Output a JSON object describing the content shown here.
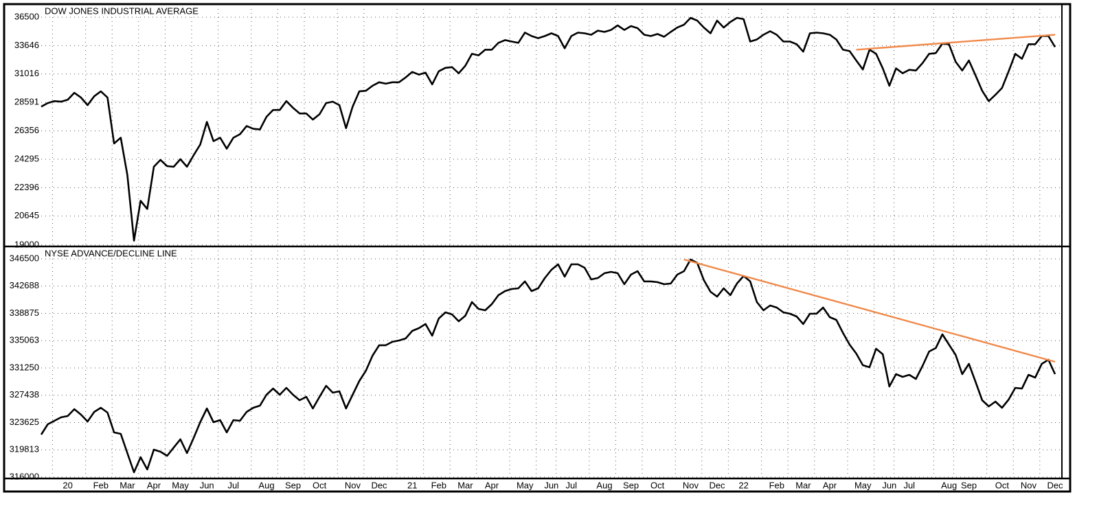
{
  "chart_data": [
    {
      "type": "line",
      "title": "DOW JONES INDUSTRIAL AVERAGE",
      "log_scale": true,
      "color": "#000000",
      "grid": true,
      "ylim": [
        19000,
        36500
      ],
      "yticks": [
        19000,
        20645,
        22396,
        24295,
        26356,
        28591,
        31016,
        33646,
        36500
      ],
      "values": [
        28250,
        28540,
        28700,
        28650,
        28810,
        29390,
        28990,
        28370,
        29100,
        29510,
        28990,
        25420,
        25840,
        23230,
        19240,
        21570,
        21070,
        23780,
        24250,
        23820,
        23780,
        24300,
        23780,
        24580,
        25340,
        27040,
        25590,
        25840,
        25040,
        25840,
        26100,
        26720,
        26510,
        26460,
        27440,
        27980,
        27980,
        28700,
        28150,
        27700,
        27700,
        27220,
        27640,
        28540,
        28650,
        28370,
        26560,
        28250,
        29510,
        29560,
        29990,
        30290,
        30170,
        30290,
        30290,
        30710,
        31200,
        30960,
        31140,
        30110,
        31260,
        31570,
        31630,
        31080,
        31750,
        32860,
        32720,
        33250,
        33250,
        33910,
        34180,
        34040,
        33910,
        34920,
        34580,
        34370,
        34580,
        34850,
        34580,
        33380,
        34580,
        34920,
        34850,
        34710,
        35120,
        34990,
        35190,
        35650,
        35190,
        35580,
        35370,
        34710,
        34580,
        34780,
        34510,
        34990,
        35430,
        35720,
        36430,
        36140,
        35430,
        34850,
        36140,
        35430,
        36000,
        36430,
        36290,
        34040,
        34240,
        34710,
        35060,
        34710,
        34040,
        34040,
        33780,
        33060,
        34850,
        34920,
        34850,
        34710,
        34240,
        33250,
        33120,
        32240,
        31420,
        33250,
        32860,
        31520,
        29990,
        31520,
        31080,
        31390,
        31330,
        32000,
        32860,
        32930,
        33840,
        33780,
        32120,
        31330,
        32240,
        30900,
        29560,
        28700,
        29220,
        29800,
        31260,
        32860,
        32400,
        33780,
        33780,
        34580,
        34580,
        33510
      ],
      "trendline": {
        "color": "#f0894a",
        "x": [
          123,
          153
        ],
        "values": [
          33250,
          34710
        ]
      }
    },
    {
      "type": "line",
      "title": "NYSE ADVANCE/DECLINE LINE",
      "log_scale": false,
      "color": "#000000",
      "grid": true,
      "ylim": [
        316000,
        346500
      ],
      "yticks": [
        316000,
        319813,
        323625,
        327438,
        331250,
        335063,
        338875,
        342688,
        346500
      ],
      "categories": [
        null,
        null,
        null,
        null,
        "20",
        null,
        null,
        null,
        null,
        "Feb",
        null,
        null,
        null,
        "Mar",
        null,
        null,
        null,
        "Apr",
        null,
        null,
        null,
        "May",
        null,
        null,
        null,
        "Jun",
        null,
        null,
        null,
        "Jul",
        null,
        null,
        null,
        null,
        "Aug",
        null,
        null,
        null,
        "Sep",
        null,
        null,
        null,
        "Oct",
        null,
        null,
        null,
        null,
        "Nov",
        null,
        null,
        null,
        "Dec",
        null,
        null,
        null,
        null,
        "21",
        null,
        null,
        null,
        "Feb",
        null,
        null,
        null,
        "Mar",
        null,
        null,
        null,
        "Apr",
        null,
        null,
        null,
        null,
        "May",
        null,
        null,
        null,
        "Jun",
        null,
        null,
        "Jul",
        null,
        null,
        null,
        null,
        "Aug",
        null,
        null,
        null,
        "Sep",
        null,
        null,
        null,
        "Oct",
        null,
        null,
        null,
        null,
        "Nov",
        null,
        null,
        null,
        "Dec",
        null,
        null,
        null,
        "22",
        null,
        null,
        null,
        null,
        "Feb",
        null,
        null,
        null,
        "Mar",
        null,
        null,
        null,
        "Apr",
        null,
        null,
        null,
        null,
        "May",
        null,
        null,
        null,
        "Jun",
        null,
        null,
        "Jul",
        null,
        null,
        null,
        null,
        null,
        "Aug",
        null,
        null,
        "Sep",
        null,
        null,
        null,
        null,
        "Oct",
        null,
        null,
        null,
        "Nov",
        null,
        null,
        null,
        "Dec"
      ],
      "values": [
        321950,
        323390,
        323870,
        324350,
        324540,
        325500,
        324730,
        323770,
        325110,
        325690,
        325020,
        322240,
        322040,
        319360,
        316670,
        318780,
        317060,
        319840,
        319550,
        318970,
        320130,
        321280,
        319360,
        321470,
        323670,
        325590,
        323670,
        323960,
        322240,
        323960,
        323870,
        325110,
        325690,
        325980,
        327510,
        328370,
        327510,
        328470,
        327510,
        326740,
        327220,
        325590,
        327220,
        328760,
        327800,
        327990,
        325590,
        327510,
        329430,
        330870,
        332980,
        334420,
        334420,
        334900,
        335090,
        335370,
        336430,
        336810,
        337390,
        335760,
        338160,
        339020,
        338730,
        337770,
        338540,
        340460,
        339500,
        339310,
        340170,
        341420,
        341990,
        342280,
        342380,
        343340,
        341990,
        342380,
        343810,
        344970,
        345730,
        344010,
        345730,
        345730,
        345250,
        343620,
        343810,
        344490,
        344680,
        344490,
        342950,
        344290,
        344770,
        343340,
        343340,
        343240,
        342950,
        343050,
        344290,
        344770,
        346400,
        345920,
        343530,
        341900,
        341220,
        342380,
        341420,
        343050,
        344100,
        343340,
        340460,
        339310,
        339980,
        339690,
        339020,
        338830,
        338440,
        337390,
        338830,
        338830,
        339690,
        338350,
        337960,
        336140,
        334510,
        333260,
        331630,
        331350,
        333940,
        333170,
        328660,
        330390,
        330000,
        330290,
        329720,
        331540,
        333550,
        334030,
        335950,
        334510,
        333070,
        330390,
        331830,
        329330,
        326740,
        325880,
        326550,
        325690,
        326840,
        328470,
        328370,
        330290,
        329910,
        331830,
        332400,
        330390
      ],
      "trendline": {
        "color": "#f0894a",
        "x": [
          97,
          153
        ],
        "values": [
          346400,
          332110
        ]
      }
    }
  ]
}
